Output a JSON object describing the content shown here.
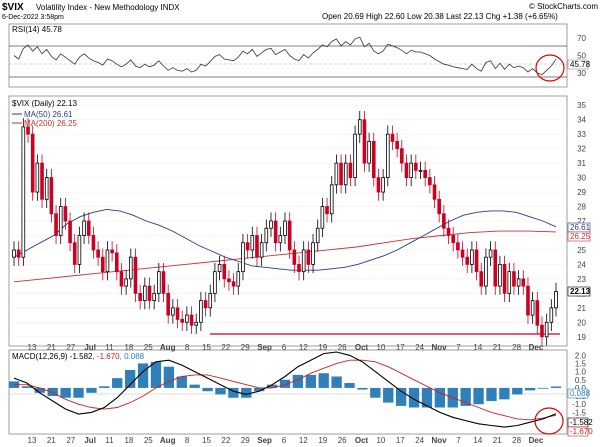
{
  "header": {
    "symbol": "$VIX",
    "name": "Volatility Index - New Methodology  INDX",
    "date": "6-Dec-2022 3:58pm",
    "quote": "Open 20.69  High 22.60  Low 20.38  Last 22.13  Chg +1.38 (+6.65%)",
    "copyright": "© StockCharts.com"
  },
  "rsi_panel": {
    "label": "RSI(14) 45.78",
    "value_label": "45.78",
    "ticks": [
      "70",
      "50",
      "30"
    ]
  },
  "price_panel": {
    "label": "$VIX (Daily) 22.13",
    "ma50_label": "MA(50) 26.61",
    "ma200_label": "MA(200) 26.25",
    "ma50_value_label": "26.61",
    "ma200_value_label": "26.25",
    "last_label": "22.13",
    "ticks": [
      "35",
      "34",
      "33",
      "32",
      "31",
      "30",
      "29",
      "28",
      "27",
      "26",
      "25",
      "24",
      "23",
      "22",
      "21",
      "20",
      "19"
    ]
  },
  "macd_panel": {
    "label_prefix": "MACD(12,26,9) ",
    "label_macd": "-1.582",
    "label_signal": ", -1.670",
    "label_hist": ", 0.088",
    "value_labels": [
      "0.088",
      "-1.582",
      "-1.670"
    ],
    "ticks": [
      "2.0",
      "1.5",
      "1.0",
      "0.5",
      "0.0",
      "-0.5",
      "-1.0",
      "-1.5",
      "-2.0",
      "-2.5"
    ]
  },
  "x_axis_labels": [
    "13",
    "21",
    "27",
    "Jul",
    "11",
    "18",
    "25",
    "Aug",
    "8",
    "15",
    "22",
    "29",
    "Sep",
    "6",
    "12",
    "19",
    "26",
    "Oct",
    "10",
    "17",
    "24",
    "Nov",
    "7",
    "14",
    "21",
    "28",
    "Dec"
  ],
  "colors": {
    "up": "#000000",
    "down": "#cc0022",
    "ma50": "#283c8c",
    "ma200": "#c83232",
    "macd": "#000000",
    "signal": "#d02020",
    "hist": "#2f7fb8",
    "annotation": "#e00000"
  },
  "chart_data": {
    "type": "candlestick",
    "y_range_price": [
      18.5,
      35.5
    ],
    "y_range_rsi": [
      15,
      85
    ],
    "y_range_macd": [
      -2.7,
      2.2
    ],
    "closes": [
      25,
      24.5,
      33.5,
      33,
      29,
      31,
      28.5,
      30,
      27.5,
      26,
      28,
      27,
      25.5,
      24,
      26,
      27,
      26,
      25,
      24.5,
      23.5,
      25,
      24.8,
      23.5,
      22.5,
      23,
      24.5,
      22,
      21.5,
      22.5,
      21.5,
      22,
      23.5,
      22,
      20.5,
      21,
      20.2,
      20,
      20.5,
      19.8,
      20,
      21.5,
      21,
      22,
      23.5,
      24,
      23,
      22.8,
      22.5,
      23.5,
      25.5,
      25,
      26,
      24.5,
      25.5,
      26.5,
      27,
      25.5,
      26,
      27,
      25,
      24,
      23.5,
      25,
      24,
      25.5,
      26.5,
      28,
      27.5,
      29.5,
      31,
      29.5,
      31,
      30,
      33,
      34,
      31,
      32.5,
      30,
      29,
      30,
      33,
      32.5,
      32,
      31,
      30,
      31,
      30.5,
      30.5,
      30,
      29.5,
      28.5,
      27.5,
      26.5,
      26,
      25.5,
      25,
      24.5,
      24,
      25,
      23.5,
      22.5,
      24.5,
      25,
      22.5,
      24,
      22,
      23.5,
      22.5,
      23,
      22.5,
      20.5,
      21.5,
      19.8,
      19,
      20,
      21,
      22.13
    ],
    "ma50": [
      24.5,
      25,
      25.5,
      26,
      26.8,
      27.3,
      27.6,
      27.8,
      27.7,
      27.4,
      27,
      26.7,
      26.3,
      25.8,
      25.3,
      24.9,
      24.5,
      24.2,
      23.9,
      23.8,
      23.7,
      23.6,
      23.6,
      23.6,
      23.7,
      23.8,
      24,
      24.3,
      24.6,
      25,
      25.5,
      26,
      26.5,
      27,
      27.4,
      27.6,
      27.7,
      27.7,
      27.6,
      27.3,
      27,
      26.6
    ],
    "ma200": [
      22.8,
      23,
      23.2,
      23.4,
      23.6,
      23.8,
      24,
      24.2,
      24.4,
      24.6,
      24.8,
      25,
      25.2,
      25.5,
      25.8,
      26,
      26.2,
      26.3,
      26.3,
      26.25
    ],
    "rsi": [
      50,
      46,
      58,
      62,
      55,
      60,
      52,
      57,
      49,
      45,
      52,
      48,
      44,
      40,
      48,
      52,
      47,
      44,
      42,
      39,
      46,
      44,
      40,
      37,
      40,
      45,
      38,
      36,
      40,
      37,
      39,
      44,
      38,
      33,
      36,
      33,
      32,
      35,
      31,
      33,
      40,
      38,
      43,
      49,
      51,
      46,
      45,
      44,
      48,
      55,
      52,
      57,
      49,
      53,
      57,
      58,
      51,
      54,
      57,
      50,
      46,
      44,
      51,
      47,
      53,
      57,
      62,
      60,
      66,
      69,
      61,
      66,
      62,
      69,
      71,
      60,
      64,
      55,
      52,
      55,
      63,
      61,
      59,
      56,
      52,
      56,
      54,
      54,
      52,
      50,
      46,
      43,
      40,
      39,
      37,
      36,
      35,
      34,
      40,
      35,
      32,
      42,
      44,
      35,
      41,
      34,
      40,
      36,
      38,
      36,
      31,
      35,
      30,
      28,
      33,
      38,
      45.78
    ],
    "macd_line": [
      0.6,
      0.3,
      -0.3,
      -0.8,
      -1.3,
      -1.6,
      -1.5,
      -1.2,
      -0.6,
      0.2,
      1.0,
      1.6,
      1.7,
      1.4,
      1.0,
      0.6,
      0.2,
      -0.2,
      -0.4,
      -0.2,
      0.2,
      0.7,
      1.3,
      1.7,
      2.1,
      2.2,
      2.0,
      1.6,
      1.0,
      0.4,
      -0.2,
      -0.7,
      -1.1,
      -1.5,
      -1.8,
      -2.0,
      -2.2,
      -2.3,
      -2.4,
      -2.3,
      -2.1,
      -1.9,
      -1.582
    ],
    "signal_line": [
      0.2,
      0.2,
      0.0,
      -0.3,
      -0.7,
      -1.0,
      -1.2,
      -1.3,
      -1.2,
      -0.9,
      -0.5,
      0.0,
      0.4,
      0.7,
      0.8,
      0.8,
      0.6,
      0.4,
      0.2,
      0.0,
      0.0,
      0.2,
      0.5,
      0.9,
      1.2,
      1.5,
      1.7,
      1.7,
      1.6,
      1.3,
      0.9,
      0.5,
      0.1,
      -0.3,
      -0.6,
      -0.9,
      -1.2,
      -1.5,
      -1.7,
      -1.9,
      -1.95,
      -1.85,
      -1.67
    ],
    "hist": [
      0.4,
      0.1,
      -0.3,
      -0.5,
      -0.6,
      -0.6,
      -0.3,
      0.1,
      0.6,
      1.1,
      1.5,
      1.6,
      1.3,
      0.7,
      0.2,
      -0.2,
      -0.4,
      -0.6,
      -0.6,
      -0.2,
      0.2,
      0.5,
      0.8,
      0.8,
      0.9,
      0.7,
      0.3,
      -0.1,
      -0.6,
      -0.9,
      -1.1,
      -1.2,
      -1.2,
      -1.2,
      -1.2,
      -1.1,
      -1.0,
      -0.8,
      -0.7,
      -0.4,
      -0.15,
      0.0,
      0.088
    ]
  }
}
